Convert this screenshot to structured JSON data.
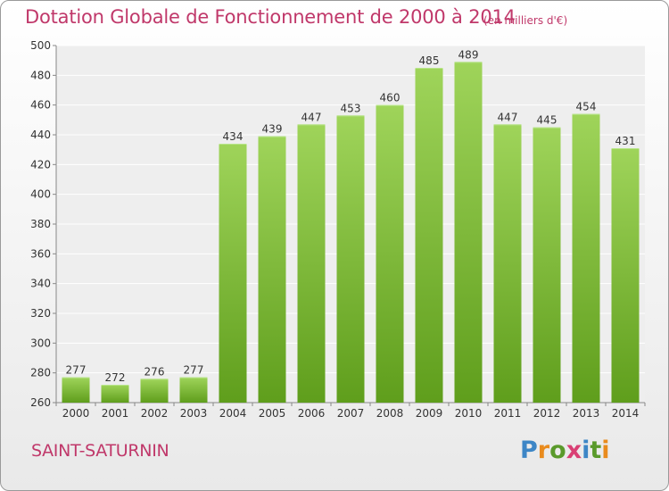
{
  "header": {
    "title": "Dotation Globale de Fonctionnement de 2000 à 2014",
    "unit": "(en milliers d'€)"
  },
  "footer": {
    "commune": "SAINT-SATURNIN",
    "logo": "Proxiti"
  },
  "colors": {
    "title": "#c0386a",
    "bar_top": "#9fd45a",
    "bar_bottom": "#5f9e1c"
  },
  "chart_data": {
    "type": "bar",
    "title": "Dotation Globale de Fonctionnement de 2000 à 2014",
    "subtitle": "(en milliers d'€)",
    "xlabel": "",
    "ylabel": "",
    "categories": [
      "2000",
      "2001",
      "2002",
      "2003",
      "2004",
      "2005",
      "2006",
      "2007",
      "2008",
      "2009",
      "2010",
      "2011",
      "2012",
      "2013",
      "2014"
    ],
    "values": [
      277,
      272,
      276,
      277,
      434,
      439,
      447,
      453,
      460,
      485,
      489,
      447,
      445,
      454,
      431
    ],
    "ylim": [
      260,
      500
    ],
    "yticks": [
      260,
      280,
      300,
      320,
      340,
      360,
      380,
      400,
      420,
      440,
      460,
      480,
      500
    ],
    "grid": true,
    "legend": "none"
  }
}
